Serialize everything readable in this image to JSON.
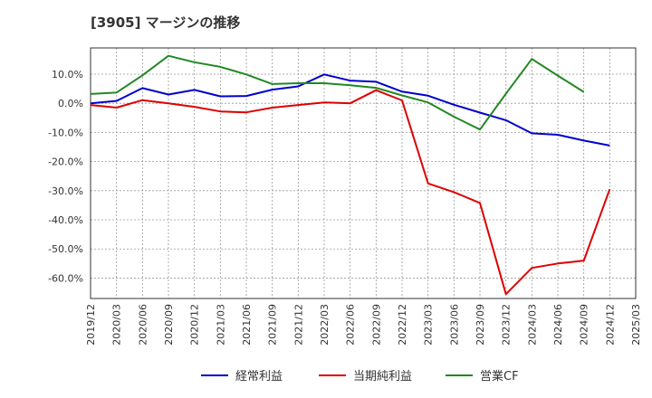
{
  "title": "[3905]  マージンの推移",
  "chart_data": {
    "type": "line",
    "x": [
      "2019/12",
      "2020/03",
      "2020/06",
      "2020/09",
      "2020/12",
      "2021/03",
      "2021/06",
      "2021/09",
      "2021/12",
      "2022/03",
      "2022/06",
      "2022/09",
      "2022/12",
      "2023/03",
      "2023/06",
      "2023/09",
      "2023/12",
      "2024/03",
      "2024/06",
      "2024/09",
      "2024/12",
      "2025/03"
    ],
    "ylim": [
      -67,
      19
    ],
    "yticks": [
      10,
      0,
      -10,
      -20,
      -30,
      -40,
      -50,
      -60
    ],
    "ytick_labels": [
      "10.0%",
      "0.0%",
      "-10.0%",
      "-20.0%",
      "-30.0%",
      "-40.0%",
      "-50.0%",
      "-60.0%"
    ],
    "grid": true,
    "legend": "bottom",
    "series": [
      {
        "name": "経常利益",
        "color": "#0000cc",
        "values": [
          0.0,
          0.8,
          5.2,
          3.0,
          4.6,
          2.4,
          2.5,
          4.7,
          5.8,
          9.9,
          7.8,
          7.4,
          4.0,
          2.6,
          -0.5,
          -3.2,
          -5.8,
          -10.3,
          -10.8,
          -12.8,
          -14.5,
          null
        ]
      },
      {
        "name": "当期純利益",
        "color": "#dd0000",
        "values": [
          -0.6,
          -1.5,
          1.1,
          0.0,
          -1.2,
          -2.8,
          -3.1,
          -1.5,
          -0.6,
          0.3,
          0.0,
          4.5,
          1.0,
          -27.5,
          -30.5,
          -34.2,
          -65.5,
          -56.5,
          -55.0,
          -54.0,
          -29.5,
          null
        ]
      },
      {
        "name": "営業CF",
        "color": "#228822",
        "values": [
          3.2,
          3.7,
          9.6,
          16.3,
          14.1,
          12.5,
          9.9,
          6.6,
          6.9,
          6.9,
          6.2,
          5.3,
          2.7,
          0.3,
          -4.6,
          -9.0,
          3.3,
          15.2,
          9.5,
          3.9,
          null,
          null
        ]
      }
    ]
  }
}
